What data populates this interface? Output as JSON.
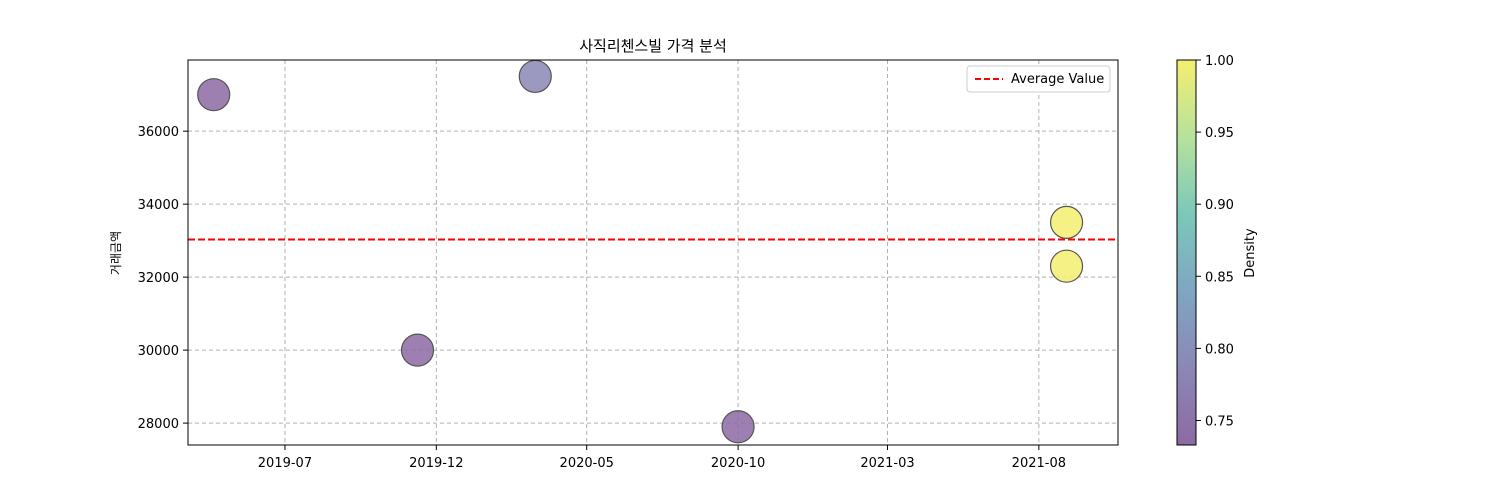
{
  "chart_data": {
    "type": "scatter",
    "title": "사직리첸스빌 가격 분석",
    "xlabel": "",
    "ylabel": "거래금액",
    "x_axis_type": "date",
    "xlim": [
      "2019-03-25",
      "2021-10-20"
    ],
    "ylim": [
      27400,
      37950
    ],
    "x_ticks": [
      "2019-07-01",
      "2019-12-01",
      "2020-05-01",
      "2020-10-01",
      "2021-03-01",
      "2021-08-01"
    ],
    "x_tick_labels": [
      "2019-07",
      "2019-12",
      "2020-05",
      "2020-10",
      "2021-03",
      "2021-08"
    ],
    "y_ticks": [
      28000,
      30000,
      32000,
      34000,
      36000
    ],
    "y_tick_labels": [
      "28000",
      "30000",
      "32000",
      "34000",
      "36000"
    ],
    "grid": true,
    "points": [
      {
        "x": "2019-04-20",
        "y": 37000,
        "density": 0.735,
        "color": "#8c6aa3"
      },
      {
        "x": "2019-11-12",
        "y": 30000,
        "density": 0.735,
        "color": "#8c6aa3"
      },
      {
        "x": "2020-03-10",
        "y": 37500,
        "density": 0.78,
        "color": "#8b87b6"
      },
      {
        "x": "2020-10-01",
        "y": 27900,
        "density": 0.735,
        "color": "#8c6aa3"
      },
      {
        "x": "2021-08-29",
        "y": 33500,
        "density": 1.0,
        "color": "#f5ee70"
      },
      {
        "x": "2021-08-29",
        "y": 32300,
        "density": 1.0,
        "color": "#f5ee70"
      }
    ],
    "average_line": {
      "y": 33030,
      "label": "Average Value",
      "color": "#ff0000"
    },
    "legend_position": "top-right",
    "colorbar": {
      "label": "Density",
      "range": [
        0.733,
        1.0
      ],
      "ticks": [
        0.75,
        0.8,
        0.85,
        0.9,
        0.95,
        1.0
      ],
      "tick_labels": [
        "0.75",
        "0.80",
        "0.85",
        "0.90",
        "0.95",
        "1.00"
      ],
      "colors": [
        "#8c6aa3",
        "#8b87b6",
        "#7fa6c2",
        "#7cc8b9",
        "#b6e29c",
        "#f5ee70"
      ]
    }
  }
}
